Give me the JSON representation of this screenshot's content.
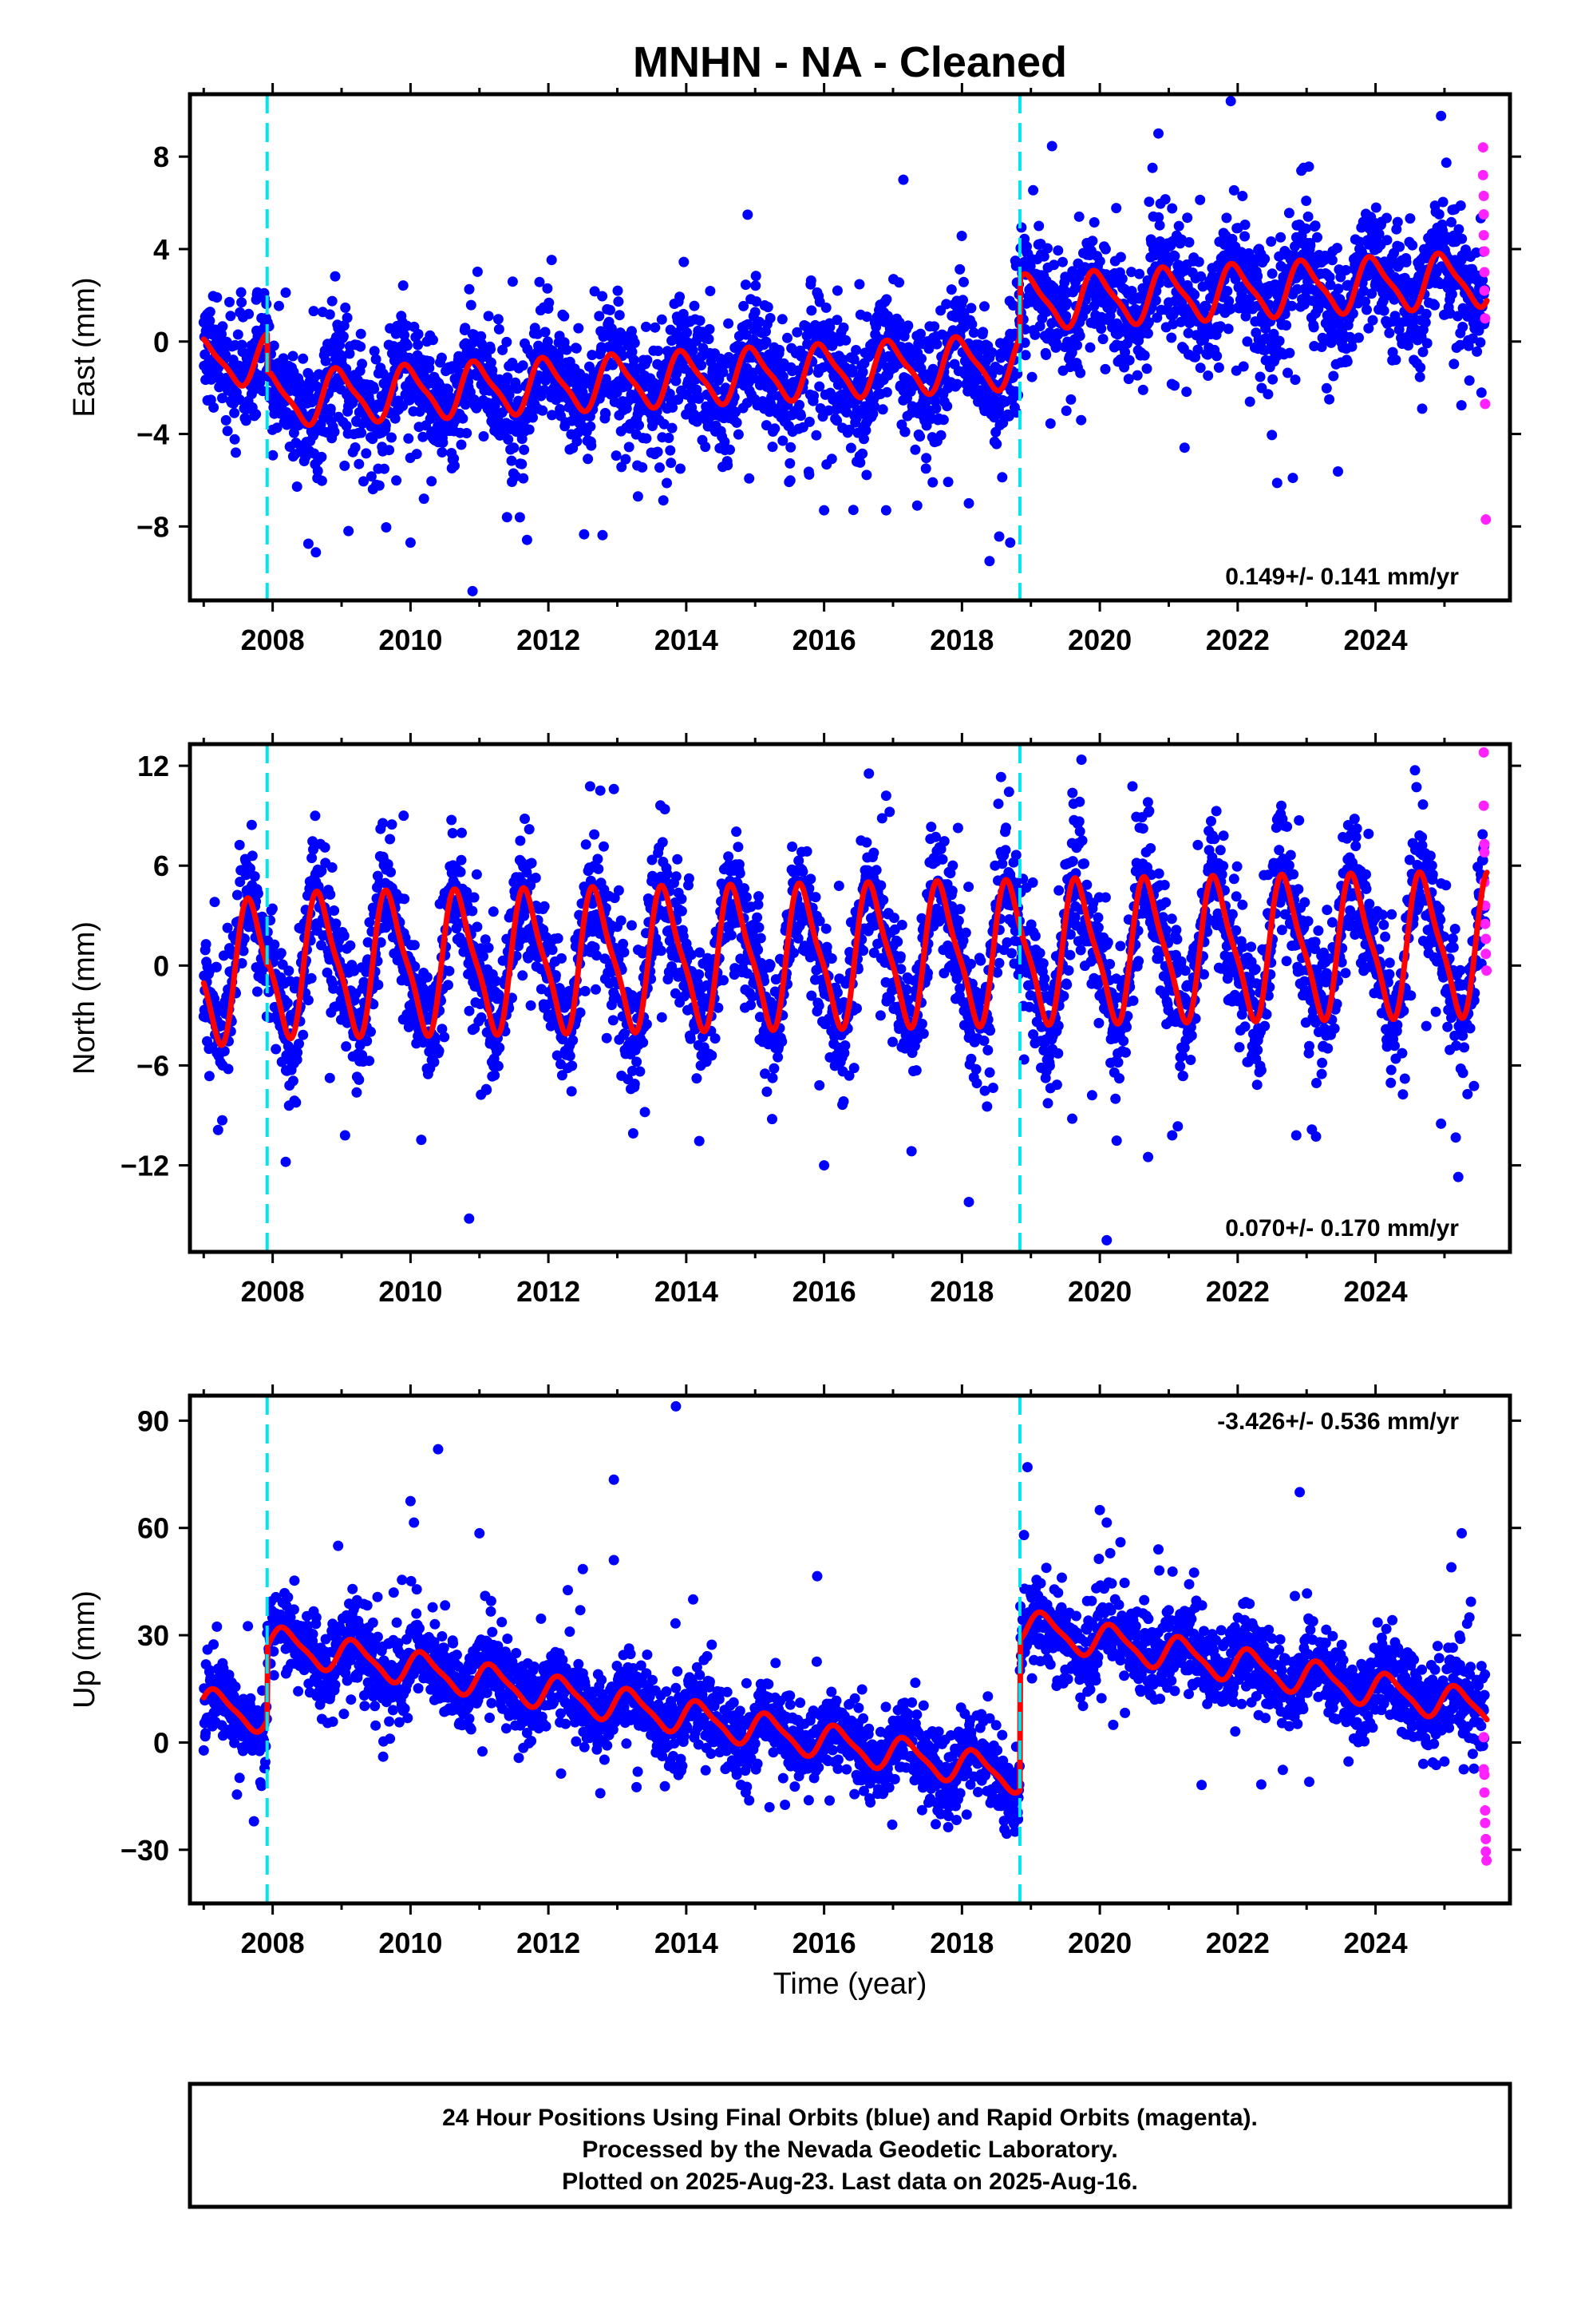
{
  "chart_data": {
    "type": "scatter",
    "title": "MNHN  - NA - Cleaned",
    "xlabel": "Time (year)",
    "xlim": [
      2006.8,
      2025.95
    ],
    "x_ticks": [
      2008,
      2010,
      2012,
      2014,
      2016,
      2018,
      2020,
      2022,
      2024
    ],
    "x_tick_labels": [
      "2008",
      "2010",
      "2012",
      "2014",
      "2016",
      "2018",
      "2020",
      "2022",
      "2024"
    ],
    "offset_lines_years": [
      2007.92,
      2018.84
    ],
    "colors": {
      "final_orbits": "#0000ff",
      "rapid_orbits": "#ff22ff",
      "model": "#ff0000",
      "offset_lines": "#00e5ee"
    },
    "grid": false,
    "panels": [
      {
        "component": "east",
        "ylabel": "East (mm)",
        "ylim": [
          -11.2,
          10.7
        ],
        "y_ticks": [
          -8,
          -4,
          0,
          4,
          8
        ],
        "y_tick_labels": [
          "−8",
          "−4",
          "0",
          "4",
          "8"
        ],
        "rate_text": "0.149+/- 0.141 mm/yr",
        "rate_position": "bottom-right",
        "model": {
          "pieces": [
            {
              "from": 2007.0,
              "to": 2007.92,
              "offset": -0.9,
              "trend": 0.149,
              "amp": 1.0,
              "phase": 0.75
            },
            {
              "from": 2007.92,
              "to": 2018.84,
              "offset": -2.5,
              "trend": 0.149,
              "amp": 1.1,
              "phase": 0.72
            },
            {
              "from": 2018.84,
              "to": 2025.62,
              "offset": 1.7,
              "trend": 0.149,
              "amp": 1.1,
              "phase": 0.72
            }
          ]
        },
        "scatter_sigma": 1.3,
        "rapid_points": [
          [
            2025.56,
            8.4
          ],
          [
            2025.56,
            7.2
          ],
          [
            2025.57,
            6.3
          ],
          [
            2025.57,
            5.5
          ],
          [
            2025.57,
            4.6
          ],
          [
            2025.58,
            3.9
          ],
          [
            2025.58,
            3.0
          ],
          [
            2025.58,
            2.2
          ],
          [
            2025.59,
            1.0
          ],
          [
            2025.59,
            -2.7
          ],
          [
            2025.6,
            -7.7
          ]
        ],
        "outlier_points": [
          [
            2010.9,
            -10.8
          ],
          [
            2017.15,
            7.0
          ],
          [
            2021.9,
            10.4
          ],
          [
            2022.8,
            -5.9
          ],
          [
            2009.1,
            -8.2
          ],
          [
            2010.0,
            -8.7
          ],
          [
            2018.4,
            -9.5
          ],
          [
            2016.0,
            -7.3
          ],
          [
            2013.3,
            -6.7
          ],
          [
            2011.4,
            -7.6
          ],
          [
            2016.9,
            -7.3
          ],
          [
            2018.1,
            -7.0
          ],
          [
            2018.7,
            -8.7
          ],
          [
            2020.85,
            9.0
          ],
          [
            2019.7,
            5.4
          ]
        ]
      },
      {
        "component": "north",
        "ylabel": "North (mm)",
        "ylim": [
          -17.2,
          13.3
        ],
        "y_ticks": [
          -12,
          -6,
          0,
          6,
          12
        ],
        "y_tick_labels": [
          "−12",
          "−6",
          "0",
          "6",
          "12"
        ],
        "rate_text": "0.070+/- 0.170 mm/yr",
        "rate_position": "bottom-right",
        "model": {
          "pieces": [
            {
              "from": 2007.0,
              "to": 2007.92,
              "offset": -0.4,
              "trend": 0.07,
              "amp": 4.0,
              "phase": 0.45
            },
            {
              "from": 2007.92,
              "to": 2018.84,
              "offset": 0.0,
              "trend": 0.07,
              "amp": 4.0,
              "phase": 0.45
            },
            {
              "from": 2018.84,
              "to": 2025.62,
              "offset": 0.8,
              "trend": 0.07,
              "amp": 4.0,
              "phase": 0.45
            }
          ]
        },
        "scatter_sigma": 1.8,
        "rapid_points": [
          [
            2025.57,
            12.8
          ],
          [
            2025.57,
            9.6
          ],
          [
            2025.58,
            7.3
          ],
          [
            2025.58,
            6.8
          ],
          [
            2025.58,
            5.0
          ],
          [
            2025.59,
            3.6
          ],
          [
            2025.59,
            2.5
          ],
          [
            2025.6,
            1.6
          ],
          [
            2025.6,
            0.7
          ],
          [
            2025.61,
            -0.3
          ]
        ],
        "outlier_points": [
          [
            2010.85,
            -15.2
          ],
          [
            2020.1,
            -16.5
          ],
          [
            2012.95,
            10.6
          ],
          [
            2016.9,
            10.2
          ],
          [
            2009.9,
            9.0
          ],
          [
            2009.05,
            -10.2
          ],
          [
            2018.1,
            -14.2
          ],
          [
            2025.2,
            -12.7
          ],
          [
            2020.7,
            -11.5
          ],
          [
            2016.0,
            -12.0
          ],
          [
            2013.4,
            -8.8
          ],
          [
            2022.85,
            -10.2
          ],
          [
            2019.6,
            -9.2
          ],
          [
            2021.05,
            -10.2
          ],
          [
            2024.95,
            -9.5
          ]
        ]
      },
      {
        "component": "up",
        "ylabel": "Up (mm)",
        "ylim": [
          -45,
          97
        ],
        "y_ticks": [
          -30,
          0,
          30,
          60,
          90
        ],
        "y_tick_labels": [
          "−30",
          "0",
          "30",
          "60",
          "90"
        ],
        "rate_text": "-3.426+/- 0.536 mm/yr",
        "rate_position": "top-right",
        "model": {
          "pieces": [
            {
              "from": 2007.0,
              "to": 2007.92,
              "offset": 10.5,
              "trend": -3.426,
              "amp": 4.5,
              "phase": 0.95
            },
            {
              "from": 2007.92,
              "to": 2018.84,
              "offset": 28.0,
              "trend": -3.426,
              "amp": 4.5,
              "phase": 0.95
            },
            {
              "from": 2018.84,
              "to": 2025.62,
              "offset": 32.5,
              "trend": -3.426,
              "amp": 4.5,
              "phase": 0.95
            }
          ]
        },
        "scatter_sigma": 5.5,
        "rapid_points": [
          [
            2025.57,
            1.5
          ],
          [
            2025.57,
            -7.5
          ],
          [
            2025.58,
            -9.0
          ],
          [
            2025.58,
            -14.0
          ],
          [
            2025.59,
            -19.0
          ],
          [
            2025.59,
            -22.5
          ],
          [
            2025.6,
            -27.0
          ],
          [
            2025.6,
            -30.5
          ],
          [
            2025.61,
            -33.0
          ]
        ],
        "outlier_points": [
          [
            2013.85,
            94.0
          ],
          [
            2010.4,
            82.0
          ],
          [
            2010.0,
            67.5
          ],
          [
            2010.05,
            61.5
          ],
          [
            2012.95,
            73.5
          ],
          [
            2011.0,
            58.5
          ],
          [
            2008.95,
            55.0
          ],
          [
            2012.95,
            51.0
          ],
          [
            2012.5,
            48.5
          ],
          [
            2018.95,
            77.0
          ],
          [
            2020.0,
            65.0
          ],
          [
            2020.1,
            61.5
          ],
          [
            2020.3,
            56.0
          ],
          [
            2020.85,
            54.0
          ],
          [
            2022.9,
            70.0
          ],
          [
            2025.25,
            58.5
          ],
          [
            2025.1,
            49.0
          ],
          [
            2024.2,
            15.0
          ],
          [
            2021.8,
            27.5
          ],
          [
            2022.45,
            31.5
          ],
          [
            2015.9,
            46.5
          ],
          [
            2018.9,
            58.0
          ],
          [
            2014.1,
            40.0
          ],
          [
            2021.0,
            37.0
          ]
        ]
      }
    ]
  },
  "footer": {
    "line1": "24 Hour Positions Using Final Orbits (blue) and Rapid Orbits (magenta).",
    "line2": "Processed by the Nevada Geodetic Laboratory.",
    "line3": "Plotted on 2025-Aug-23. Last data on 2025-Aug-16."
  }
}
